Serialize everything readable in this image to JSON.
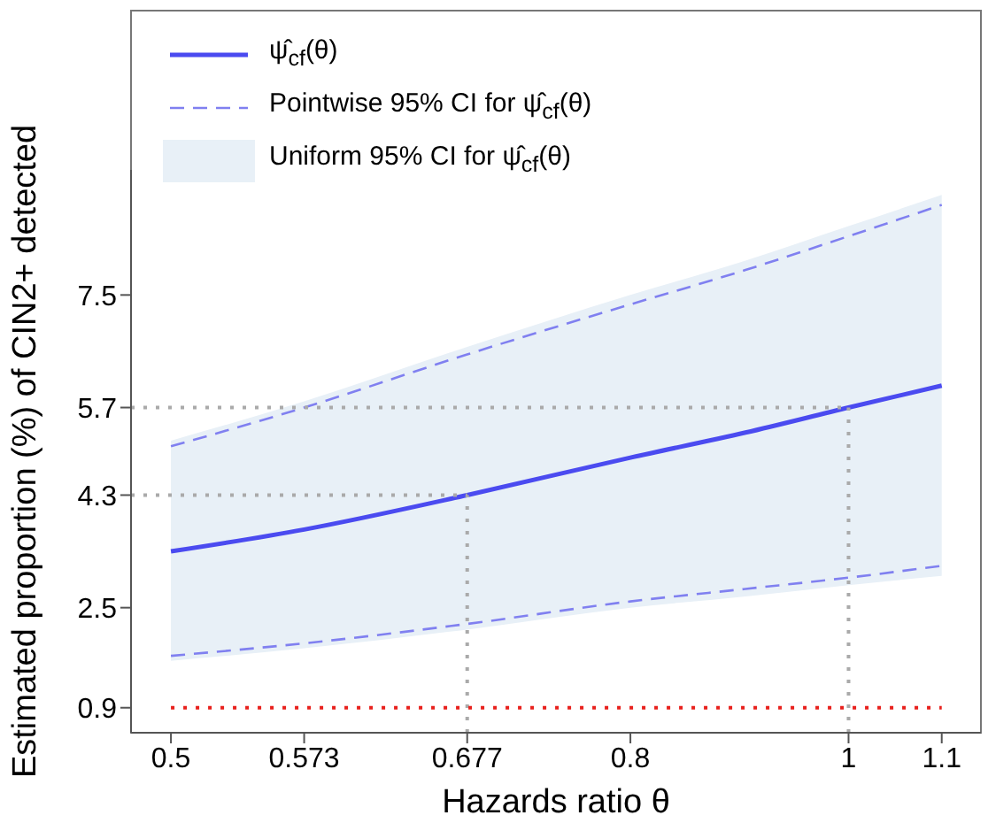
{
  "chart_data": {
    "type": "line",
    "xlabel": "Hazards ratio θ",
    "ylabel": "Estimated proportion (%) of CIN2+ detected",
    "x": [
      0.5,
      0.573,
      0.677,
      0.8,
      0.9,
      1,
      1.1
    ],
    "series": [
      {
        "name": "ψ̂$_{cf}$(θ)",
        "color": "#4b4bf0",
        "line_style": "solid",
        "values": [
          3.4,
          3.75,
          4.3,
          4.9,
          5.3,
          5.7,
          6.05
        ],
        "lower": [
          1.65,
          1.85,
          2.15,
          2.5,
          2.68,
          2.86,
          3.01
        ],
        "upper": [
          5.17,
          5.8,
          6.67,
          7.5,
          8.05,
          8.6,
          9.1
        ]
      },
      {
        "name": "Pointwise 95% CI for ψ̂$_{cf}$(θ)",
        "color": "#8080f0",
        "line_style": "dashed",
        "values": [
          5.08,
          5.7,
          6.55,
          7.35,
          7.9,
          8.44,
          8.94
        ]
      },
      {
        "color": "#8080f0",
        "line_style": "dashed",
        "values": [
          1.73,
          1.93,
          2.24,
          2.6,
          2.8,
          2.98,
          3.17
        ]
      }
    ],
    "xlim": [
      0.48,
      1.145
    ],
    "xticks": [
      0.5,
      0.573,
      0.677,
      0.8,
      1,
      1.1
    ],
    "log": "x",
    "ylim": [
      0.5,
      9.5
    ],
    "yticks": [
      0.9,
      2.5,
      4.3,
      5.7,
      7.5
    ],
    "ref_lines": [
      {
        "axis": "x",
        "value": 0.677,
        "color": "#aaaaaa",
        "line_style": "dotted"
      },
      {
        "axis": "y",
        "value": 4.3,
        "color": "#aaaaaa",
        "line_style": "dotted"
      },
      {
        "axis": "x",
        "value": 1,
        "color": "#aaaaaa",
        "line_style": "dotted"
      },
      {
        "axis": "y",
        "value": 5.7,
        "color": "#aaaaaa",
        "line_style": "dotted"
      },
      {
        "axis": "y",
        "value": 0.9,
        "color": "#e8201c",
        "line_style": "dotted"
      }
    ],
    "annotations": [
      "Uniform 95% CI for ψ̂$_{cf}$(θ)"
    ],
    "grid": false,
    "marker": "none",
    "legend": "top left"
  }
}
